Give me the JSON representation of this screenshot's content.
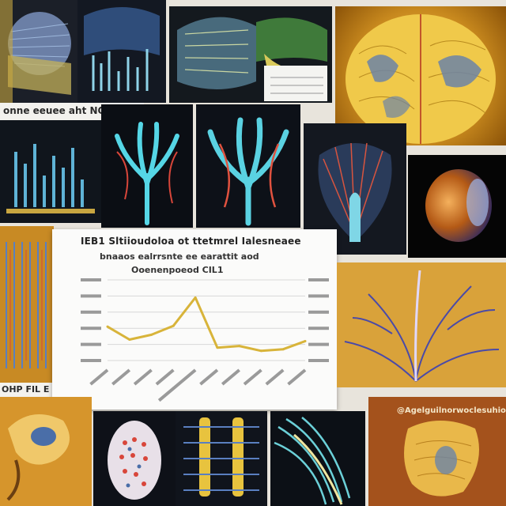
{
  "captions": {
    "top_left": "onne eeuee aht NO!P",
    "bottom_left": "OHP FIL E",
    "bottom_right": "@Agelguilnorwoclesuhion",
    "chart_title": "IEB1 Sltiioudoloa ot ttetmrel Ialesneaee",
    "chart_subtitle": "bnaaos ealrrsnte ee earattit aod",
    "chart_subtitle2": "Ooenenpoeod CIL1"
  },
  "chart_data": {
    "type": "line",
    "title": "IEB1 Sltiioudoloa ot ttetmrel Ialesneaee",
    "categories": [
      "",
      "",
      "",
      "",
      "",
      "",
      "",
      "",
      "",
      ""
    ],
    "values": [
      4.2,
      2.6,
      3.2,
      4.3,
      7.8,
      1.6,
      1.8,
      1.2,
      1.4,
      2.4
    ],
    "ylim": [
      0,
      10
    ],
    "grid": true,
    "tick_labels_legible": false
  },
  "colors": {
    "line": "#d8b43a",
    "gold": "#e0a93a",
    "cyan": "#55d6e6",
    "dark": "#0b0d12"
  }
}
